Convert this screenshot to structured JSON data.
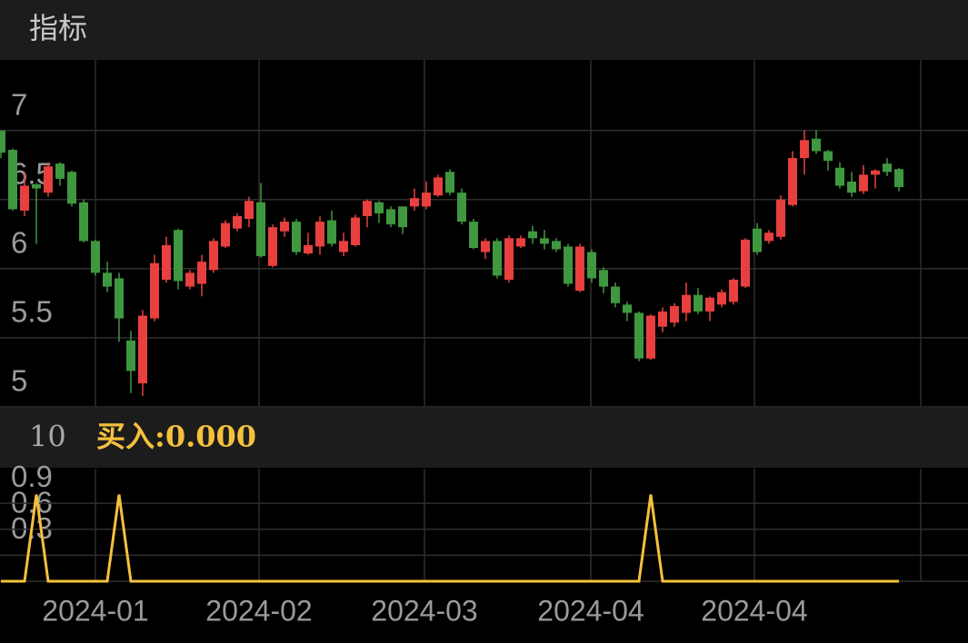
{
  "header": {
    "title": "指标"
  },
  "chart_data": [
    {
      "type": "candlestick",
      "up_color": "#e8403f",
      "down_color": "#3f983f",
      "ylim": [
        5,
        7.51
      ],
      "yticks": [
        5,
        5.5,
        6,
        6.5,
        7
      ],
      "grid": true,
      "xtick_labels": [
        "2024-01",
        "2024-02",
        "2024-03",
        "2024-04",
        "2024-04"
      ],
      "open": [
        7.0,
        6.86,
        6.42,
        6.61,
        6.55,
        6.76,
        6.7,
        6.48,
        6.2,
        5.97,
        5.93,
        5.48,
        5.17,
        5.64,
        5.92,
        6.28,
        5.87,
        5.89,
        5.99,
        6.16,
        6.29,
        6.36,
        6.48,
        6.02,
        6.27,
        6.34,
        6.11,
        6.16,
        6.35,
        6.12,
        6.17,
        6.38,
        6.48,
        6.43,
        6.45,
        6.45,
        6.45,
        6.53,
        6.7,
        6.55,
        6.34,
        6.12,
        6.2,
        5.92,
        6.16,
        6.27,
        6.22,
        6.2,
        6.16,
        5.84,
        6.12,
        5.99,
        5.87,
        5.74,
        5.68,
        5.35,
        5.58,
        5.61,
        5.68,
        5.81,
        5.69,
        5.74,
        5.76,
        5.87,
        6.29,
        6.2,
        6.23,
        6.46,
        6.8,
        6.94,
        6.85,
        6.73,
        6.63,
        6.56,
        6.68,
        6.76,
        6.72
      ],
      "high": [
        7.0,
        6.87,
        6.7,
        6.62,
        6.77,
        6.77,
        6.71,
        6.5,
        6.21,
        6.05,
        5.97,
        5.55,
        5.7,
        6.1,
        6.23,
        6.29,
        5.99,
        6.1,
        6.22,
        6.35,
        6.4,
        6.52,
        6.62,
        6.32,
        6.37,
        6.36,
        6.26,
        6.38,
        6.42,
        6.26,
        6.39,
        6.5,
        6.49,
        6.45,
        6.45,
        6.58,
        6.63,
        6.68,
        6.72,
        6.58,
        6.36,
        6.22,
        6.22,
        6.24,
        6.24,
        6.31,
        6.28,
        6.22,
        6.18,
        6.18,
        6.14,
        6.01,
        5.9,
        5.76,
        5.69,
        5.67,
        5.72,
        5.75,
        5.9,
        5.86,
        5.8,
        5.85,
        5.93,
        6.22,
        6.33,
        6.28,
        6.53,
        6.85,
        7.0,
        7.0,
        6.86,
        6.77,
        6.7,
        6.75,
        6.72,
        6.8,
        6.73
      ],
      "low": [
        6.8,
        6.42,
        6.38,
        6.18,
        6.52,
        6.6,
        6.45,
        6.19,
        5.95,
        5.83,
        5.47,
        5.1,
        5.08,
        5.62,
        5.9,
        5.85,
        5.85,
        5.8,
        5.97,
        6.15,
        6.27,
        6.3,
        6.08,
        6.01,
        6.23,
        6.1,
        6.1,
        6.1,
        6.16,
        6.09,
        6.16,
        6.3,
        6.33,
        6.3,
        6.25,
        6.42,
        6.43,
        6.52,
        6.53,
        6.32,
        6.14,
        6.07,
        5.93,
        5.9,
        6.15,
        6.18,
        6.14,
        6.12,
        5.87,
        5.83,
        5.9,
        5.82,
        5.72,
        5.62,
        5.33,
        5.34,
        5.54,
        5.58,
        5.62,
        5.67,
        5.62,
        5.72,
        5.74,
        5.86,
        6.1,
        6.18,
        6.21,
        6.45,
        6.68,
        6.83,
        6.71,
        6.58,
        6.52,
        6.54,
        6.58,
        6.67,
        6.56
      ],
      "close": [
        6.84,
        6.43,
        6.6,
        6.58,
        6.74,
        6.65,
        6.47,
        6.2,
        5.97,
        5.87,
        5.64,
        5.26,
        5.66,
        6.04,
        6.17,
        5.91,
        5.97,
        6.05,
        6.2,
        6.33,
        6.38,
        6.49,
        6.09,
        6.3,
        6.34,
        6.12,
        6.17,
        6.34,
        6.18,
        6.2,
        6.37,
        6.49,
        6.4,
        6.32,
        6.3,
        6.51,
        6.55,
        6.66,
        6.55,
        6.34,
        6.15,
        6.2,
        5.95,
        6.22,
        6.22,
        6.22,
        6.18,
        6.14,
        5.89,
        6.16,
        5.93,
        5.87,
        5.75,
        5.68,
        5.35,
        5.66,
        5.69,
        5.73,
        5.81,
        5.69,
        5.79,
        5.83,
        5.92,
        6.21,
        6.12,
        6.26,
        6.5,
        6.8,
        6.93,
        6.85,
        6.78,
        6.6,
        6.55,
        6.68,
        6.71,
        6.7,
        6.59
      ]
    },
    {
      "type": "line",
      "period_label": "10",
      "title": "买入:0.000",
      "color": "#f5c13c",
      "ylim": [
        0,
        1.3
      ],
      "yticks": [
        0.3,
        0.6,
        0.9
      ],
      "grid": true,
      "values": [
        0,
        0,
        0,
        1,
        0,
        0,
        0,
        0,
        0,
        0,
        1,
        0,
        0,
        0,
        0,
        0,
        0,
        0,
        0,
        0,
        0,
        0,
        0,
        0,
        0,
        0,
        0,
        0,
        0,
        0,
        0,
        0,
        0,
        0,
        0,
        0,
        0,
        0,
        0,
        0,
        0,
        0,
        0,
        0,
        0,
        0,
        0,
        0,
        0,
        0,
        0,
        0,
        0,
        0,
        0,
        1,
        0,
        0,
        0,
        0,
        0,
        0,
        0,
        0,
        0,
        0,
        0,
        0,
        0,
        0,
        0,
        0,
        0,
        0,
        0,
        0,
        0
      ]
    }
  ]
}
